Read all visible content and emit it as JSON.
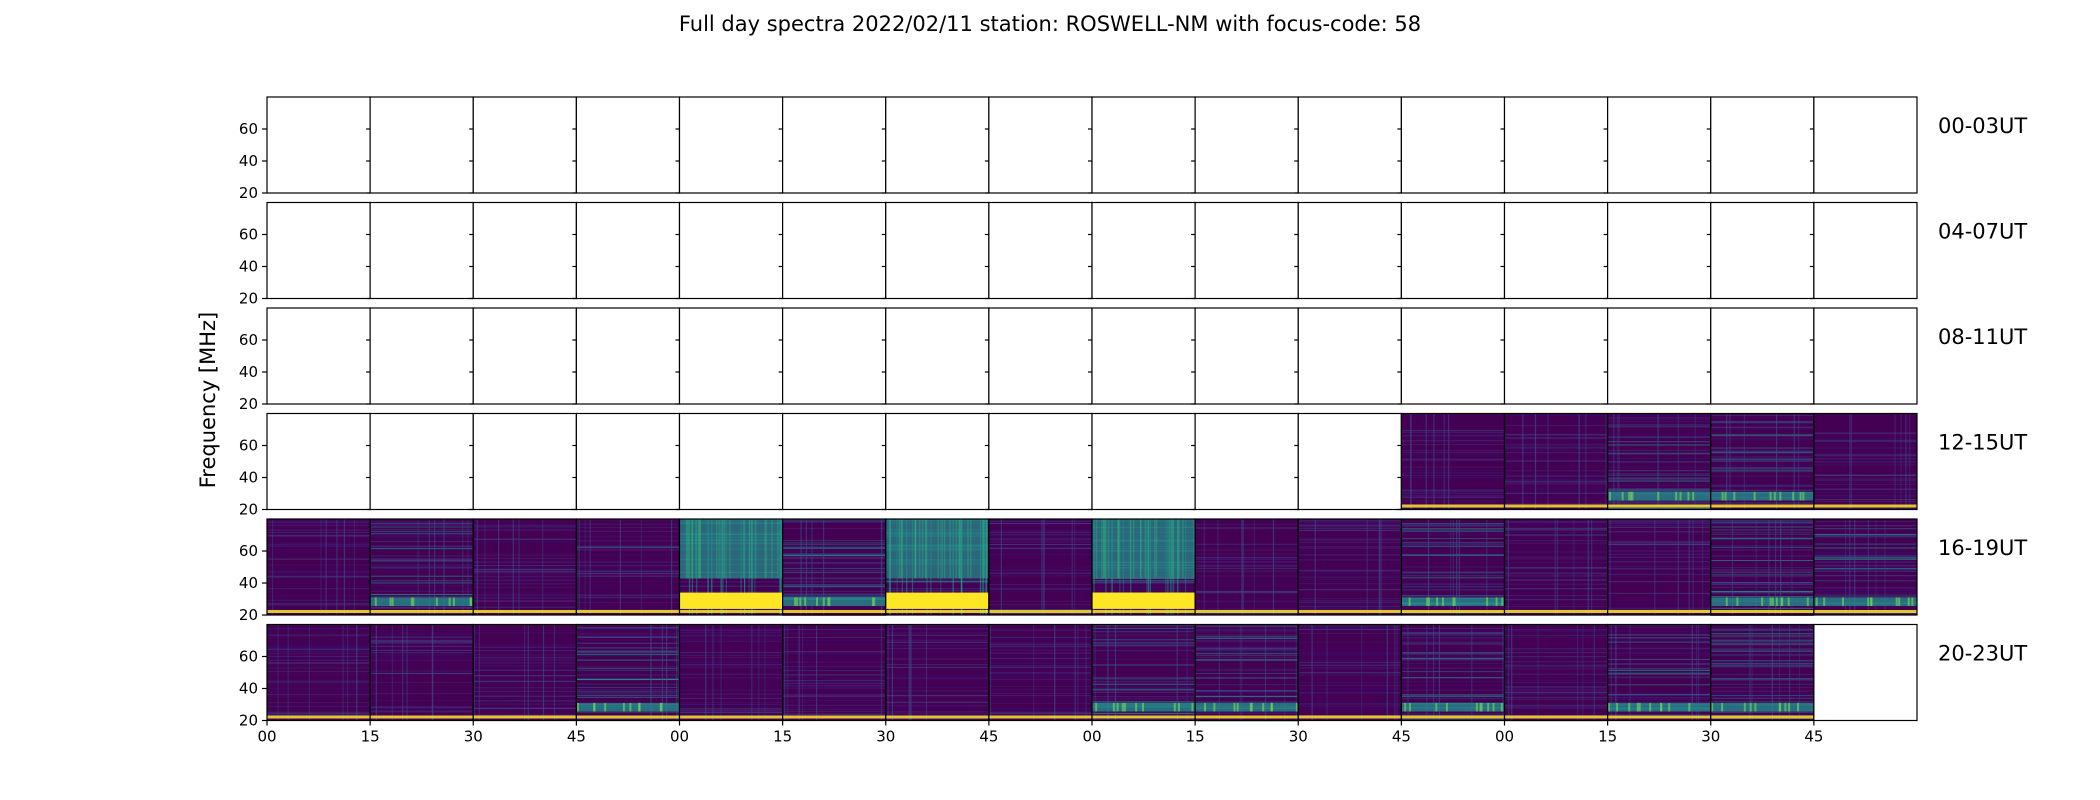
{
  "chart_data": {
    "type": "heatmap",
    "title": "Full day spectra 2022/02/11 station: ROSWELL-NM with focus-code: 58",
    "ylabel": "Frequency [MHz]",
    "xlabel": "",
    "ylim": [
      20,
      80
    ],
    "ytick_labels": [
      "20",
      "40",
      "60"
    ],
    "xtick_labels": [
      "00",
      "15",
      "30",
      "45",
      "00",
      "15",
      "30",
      "45",
      "00",
      "15",
      "30",
      "45",
      "00",
      "15",
      "30",
      "45"
    ],
    "colormap": "viridis",
    "colors": {
      "low": "#440154",
      "mid": "#21918c",
      "high": "#fde725",
      "marker_dots": "#fde725"
    },
    "rows": [
      {
        "label": "00-03UT",
        "segments": [
          "none",
          "none",
          "none",
          "none",
          "none",
          "none",
          "none",
          "none",
          "none",
          "none",
          "none",
          "none",
          "none",
          "none",
          "none",
          "none"
        ]
      },
      {
        "label": "04-07UT",
        "segments": [
          "none",
          "none",
          "none",
          "none",
          "none",
          "none",
          "none",
          "none",
          "none",
          "none",
          "none",
          "none",
          "none",
          "none",
          "none",
          "none"
        ]
      },
      {
        "label": "08-11UT",
        "segments": [
          "none",
          "none",
          "none",
          "none",
          "none",
          "none",
          "none",
          "none",
          "none",
          "none",
          "none",
          "none",
          "none",
          "none",
          "none",
          "none"
        ]
      },
      {
        "label": "12-15UT",
        "segments": [
          "none",
          "none",
          "none",
          "none",
          "none",
          "none",
          "none",
          "none",
          "none",
          "none",
          "none",
          "low",
          "low",
          "mid",
          "mid",
          "low"
        ]
      },
      {
        "label": "16-19UT",
        "segments": [
          "low",
          "mid",
          "low",
          "low",
          "high",
          "mid",
          "high",
          "low",
          "high",
          "low",
          "low",
          "mid",
          "low",
          "low",
          "mid",
          "mid"
        ]
      },
      {
        "label": "20-23UT",
        "segments": [
          "low",
          "low",
          "low",
          "mid",
          "low",
          "low",
          "low",
          "low",
          "mid",
          "mid",
          "low",
          "mid",
          "low",
          "mid",
          "mid",
          "none"
        ]
      }
    ]
  }
}
